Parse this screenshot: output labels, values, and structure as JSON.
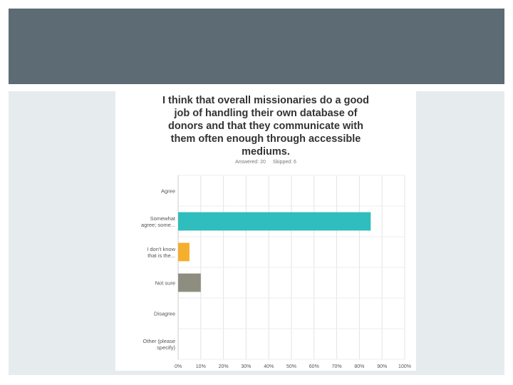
{
  "slide": {
    "header_color": "#5d6b74",
    "background_color": "#e6ebee"
  },
  "survey": {
    "answered_label": "Answered: 20",
    "skipped_label": "Skipped: 6"
  },
  "chart_data": {
    "type": "bar",
    "orientation": "horizontal",
    "title": "I think that overall missionaries do a good job of handling their own database of donors and that they communicate with them often enough through accessible mediums.",
    "title_lines": [
      "I think that overall missionaries do a good",
      "job of handling their own database of",
      "donors and that they communicate with",
      "them often enough through accessible",
      "mediums."
    ],
    "categories": [
      [
        "Agree"
      ],
      [
        "Somewhat",
        "agree; some..."
      ],
      [
        "I don't know",
        "that is the..."
      ],
      [
        "Not sure"
      ],
      [
        "Disagree"
      ],
      [
        "Other (please",
        "specify)"
      ]
    ],
    "values": [
      0,
      85,
      5,
      10,
      0,
      0
    ],
    "colors": [
      "#2fbdbd",
      "#2fbdbd",
      "#f6ae2d",
      "#8e8e80",
      "#2fbdbd",
      "#2fbdbd"
    ],
    "xlim": [
      0,
      100
    ],
    "xticks": [
      "0%",
      "10%",
      "20%",
      "30%",
      "40%",
      "50%",
      "60%",
      "70%",
      "80%",
      "90%",
      "100%"
    ],
    "grid": true
  }
}
